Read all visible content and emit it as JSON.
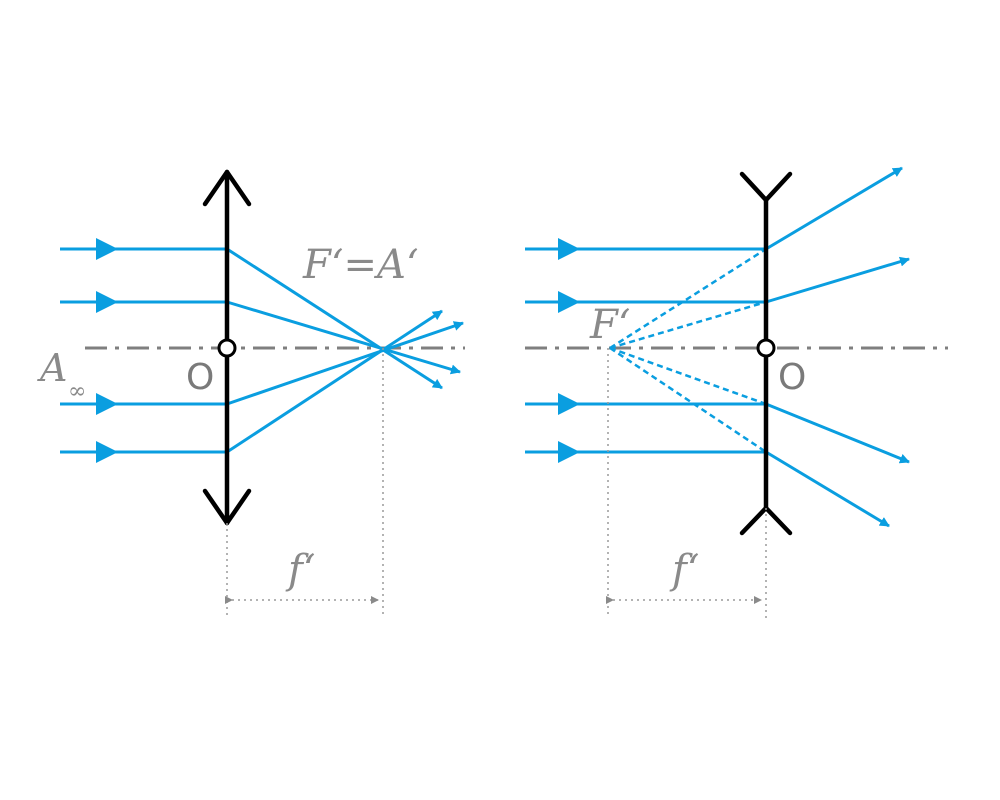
{
  "colors": {
    "ray": "#0a9ee0",
    "lens": "#000000",
    "axis": "#7f7f7f",
    "label": "#8a8a8a",
    "background": "#ffffff"
  },
  "converging_lens": {
    "focal_label": "F‘=A‘",
    "object_label": "A",
    "object_subscript": "∞",
    "center_label": "O",
    "focal_length_label": "f‘"
  },
  "diverging_lens": {
    "focal_label": "F‘",
    "center_label": "O",
    "focal_length_label": "f‘"
  }
}
